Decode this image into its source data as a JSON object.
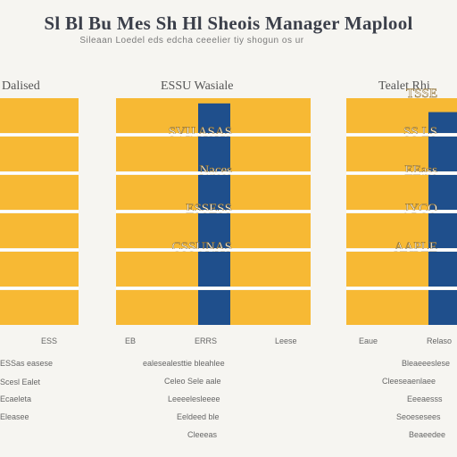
{
  "title": "Sl Bl Bu Mes Sh Hl Sheois Manager Maplool",
  "subtitle": "Sileaan Loedel eds edcha ceeelier tiy shogun os ur",
  "colors": {
    "bar": "#f7b934",
    "blue": "#1f4f8c",
    "grid": "#ffffff",
    "background": "#f6f5f1"
  },
  "panels": [
    {
      "title": "Dalised",
      "footer_label": "ESS",
      "notes": [
        "ESSas easese",
        "Scesl Ealet",
        "Ecaeleta",
        "Eleasee"
      ]
    },
    {
      "title": "ESSU Wasiale",
      "footer_labels": [
        "EB",
        "ERRS",
        "Leese"
      ],
      "notes": [
        "ealesealesttie bleahlee",
        "Celeo Sele aale",
        "Leeeelesleeee",
        "Eeldeed ble",
        "Cleeeas"
      ]
    },
    {
      "title": "Tealet Rhi",
      "footer_labels": [
        "Eaue",
        "Relaso"
      ],
      "notes": [
        "Bleaeeeslese",
        "Cleeseaenlaee",
        "Eeeaesss",
        "Seoesesees",
        "Beaeedee"
      ]
    }
  ],
  "chart_data": [
    {
      "type": "bar",
      "title": "Dalised",
      "categories": [
        "",
        "",
        "",
        "",
        "",
        ""
      ],
      "values": [
        1,
        1,
        1,
        1,
        1,
        1
      ]
    },
    {
      "type": "bar",
      "title": "ESSU Wasiale",
      "categories": [
        "",
        "",
        "",
        "",
        "",
        ""
      ],
      "values": [
        1,
        1,
        1,
        1,
        1,
        1
      ],
      "labels": [
        "",
        "SVIJ ASAS",
        "Naces",
        "ESSESS",
        "CSSUNAS",
        ""
      ],
      "highlight_values": [
        0.85,
        1,
        1,
        1,
        1,
        1
      ]
    },
    {
      "type": "bar",
      "title": "Tealet Rhi",
      "categories": [
        "",
        "",
        "",
        "",
        "",
        ""
      ],
      "values": [
        1,
        1,
        1,
        1,
        1,
        1
      ],
      "labels": [
        "TSSE",
        "SS LS",
        "EEass",
        "JYCO",
        "AAPLE",
        ""
      ],
      "highlight_values": [
        0.6,
        1,
        1,
        1,
        1,
        1
      ]
    }
  ]
}
